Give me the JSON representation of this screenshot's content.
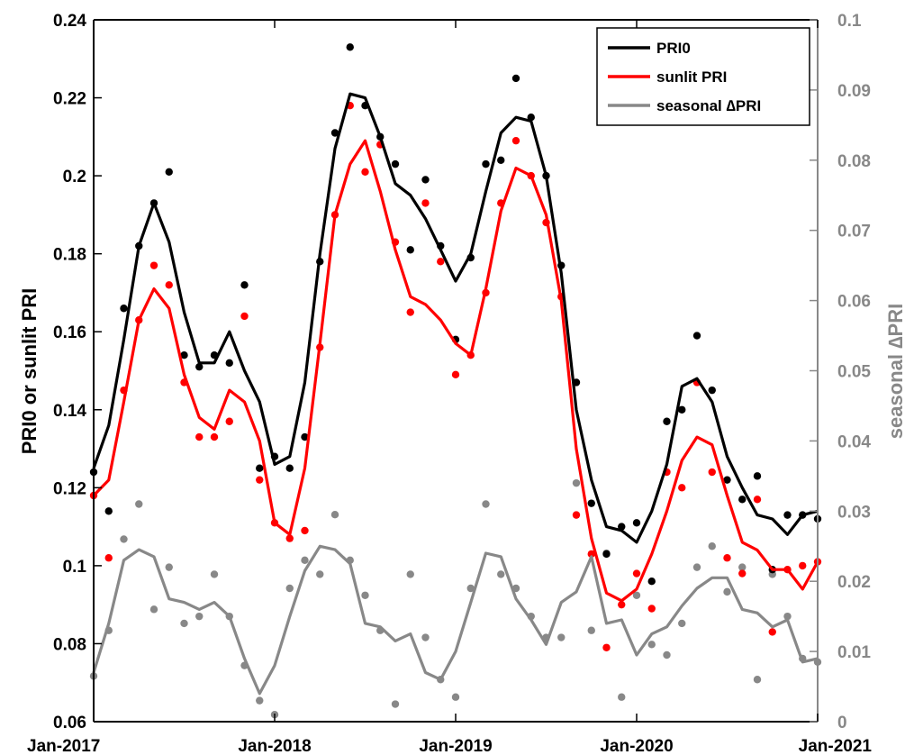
{
  "chart_data": {
    "type": "line",
    "xlabel": "",
    "ylabel": "PRI0 or sunlit PRI",
    "ylabel_right": "seasonal ∆PRI",
    "x_ticks": [
      "Jan-2017",
      "Jan-2018",
      "Jan-2019",
      "Jan-2020",
      "Jan-2021"
    ],
    "xlim": [
      "2017-01",
      "2021-01"
    ],
    "x": [
      "2017-01",
      "2017-02",
      "2017-03",
      "2017-04",
      "2017-05",
      "2017-06",
      "2017-07",
      "2017-08",
      "2017-09",
      "2017-10",
      "2017-11",
      "2017-12",
      "2018-01",
      "2018-02",
      "2018-03",
      "2018-04",
      "2018-05",
      "2018-06",
      "2018-07",
      "2018-08",
      "2018-09",
      "2018-10",
      "2018-11",
      "2018-12",
      "2019-01",
      "2019-02",
      "2019-03",
      "2019-04",
      "2019-05",
      "2019-06",
      "2019-07",
      "2019-08",
      "2019-09",
      "2019-10",
      "2019-11",
      "2019-12",
      "2020-01",
      "2020-02",
      "2020-03",
      "2020-04",
      "2020-05",
      "2020-06",
      "2020-07",
      "2020-08",
      "2020-09",
      "2020-10",
      "2020-11",
      "2020-12",
      "2021-01"
    ],
    "y_left": {
      "lim": [
        0.06,
        0.24
      ],
      "ticks": [
        "0.06",
        "0.08",
        "0.1",
        "0.12",
        "0.14",
        "0.16",
        "0.18",
        "0.2",
        "0.22",
        "0.24"
      ]
    },
    "y_right": {
      "lim": [
        0,
        0.1
      ],
      "ticks": [
        "0",
        "0.01",
        "0.02",
        "0.03",
        "0.04",
        "0.05",
        "0.06",
        "0.07",
        "0.08",
        "0.09",
        "0.1"
      ]
    },
    "grid": false,
    "legend_position": "top-right",
    "series": [
      {
        "name": "PRI0",
        "color": "#000000",
        "axis": "left",
        "line": [
          0.125,
          0.136,
          0.158,
          0.182,
          0.193,
          0.183,
          0.165,
          0.152,
          0.152,
          0.16,
          0.15,
          0.142,
          0.126,
          0.128,
          0.147,
          0.18,
          0.207,
          0.221,
          0.22,
          0.21,
          0.198,
          0.195,
          0.189,
          0.181,
          0.173,
          0.18,
          0.196,
          0.211,
          0.215,
          0.214,
          0.2,
          0.175,
          0.14,
          0.122,
          0.11,
          0.109,
          0.106,
          0.114,
          0.126,
          0.146,
          0.148,
          0.142,
          0.128,
          0.12,
          0.113,
          0.112,
          0.108,
          0.113,
          0.114
        ],
        "points": [
          0.124,
          0.114,
          0.166,
          0.182,
          0.193,
          0.201,
          0.154,
          0.151,
          0.154,
          0.152,
          0.172,
          0.125,
          0.128,
          0.125,
          0.133,
          0.178,
          0.211,
          0.233,
          0.218,
          0.21,
          0.203,
          0.181,
          0.199,
          0.182,
          0.158,
          0.179,
          0.203,
          0.204,
          0.225,
          0.215,
          0.2,
          0.177,
          0.147,
          0.116,
          0.103,
          0.11,
          0.111,
          0.096,
          0.137,
          0.14,
          0.159,
          0.145,
          0.122,
          0.117,
          0.123,
          0.099,
          0.113,
          0.113,
          0.112
        ]
      },
      {
        "name": "sunlit PRI",
        "color": "#ff0000",
        "axis": "left",
        "line": [
          0.118,
          0.122,
          0.142,
          0.163,
          0.171,
          0.166,
          0.149,
          0.138,
          0.135,
          0.145,
          0.142,
          0.132,
          0.111,
          0.108,
          0.125,
          0.157,
          0.19,
          0.203,
          0.209,
          0.196,
          0.181,
          0.169,
          0.167,
          0.163,
          0.157,
          0.154,
          0.171,
          0.191,
          0.202,
          0.2,
          0.19,
          0.168,
          0.13,
          0.107,
          0.093,
          0.091,
          0.094,
          0.103,
          0.114,
          0.127,
          0.133,
          0.131,
          0.118,
          0.106,
          0.104,
          0.099,
          0.099,
          0.094,
          0.101
        ],
        "points": [
          0.118,
          0.102,
          0.145,
          0.163,
          0.177,
          0.172,
          0.147,
          0.133,
          0.133,
          0.137,
          0.164,
          0.122,
          0.111,
          0.107,
          0.109,
          0.156,
          0.19,
          0.218,
          0.201,
          0.208,
          0.183,
          0.165,
          0.193,
          0.178,
          0.149,
          0.154,
          0.17,
          0.193,
          0.209,
          0.2,
          0.188,
          0.169,
          0.113,
          0.103,
          0.079,
          0.09,
          0.098,
          0.089,
          0.124,
          0.12,
          0.147,
          0.124,
          0.102,
          0.098,
          0.117,
          0.083,
          0.099,
          0.1,
          0.101
        ]
      },
      {
        "name": "seasonal ∆PRI",
        "color": "#888888",
        "axis": "right",
        "line": [
          0.007,
          0.014,
          0.023,
          0.0245,
          0.0235,
          0.0175,
          0.017,
          0.016,
          0.017,
          0.015,
          0.009,
          0.004,
          0.008,
          0.015,
          0.0215,
          0.025,
          0.0245,
          0.0225,
          0.014,
          0.0135,
          0.0115,
          0.0125,
          0.007,
          0.006,
          0.01,
          0.017,
          0.024,
          0.0235,
          0.0175,
          0.0145,
          0.011,
          0.017,
          0.0185,
          0.0235,
          0.014,
          0.0145,
          0.0095,
          0.0125,
          0.0135,
          0.0165,
          0.019,
          0.0205,
          0.0205,
          0.016,
          0.0155,
          0.0135,
          0.0145,
          0.0085,
          0.009
        ],
        "points": [
          0.0065,
          0.013,
          0.026,
          0.031,
          0.016,
          0.022,
          0.014,
          0.015,
          0.021,
          0.015,
          0.008,
          0.003,
          0.001,
          0.019,
          0.023,
          0.021,
          0.0295,
          0.023,
          0.018,
          0.013,
          0.0025,
          0.021,
          0.012,
          0.006,
          0.0035,
          0.019,
          0.031,
          0.021,
          0.019,
          0.015,
          0.012,
          0.012,
          0.034,
          0.013,
          0.024,
          0.0035,
          0.018,
          0.011,
          0.0095,
          0.014,
          0.022,
          0.025,
          0.0185,
          0.022,
          0.006,
          0.021,
          0.015,
          0.009,
          0.0085
        ]
      }
    ]
  }
}
